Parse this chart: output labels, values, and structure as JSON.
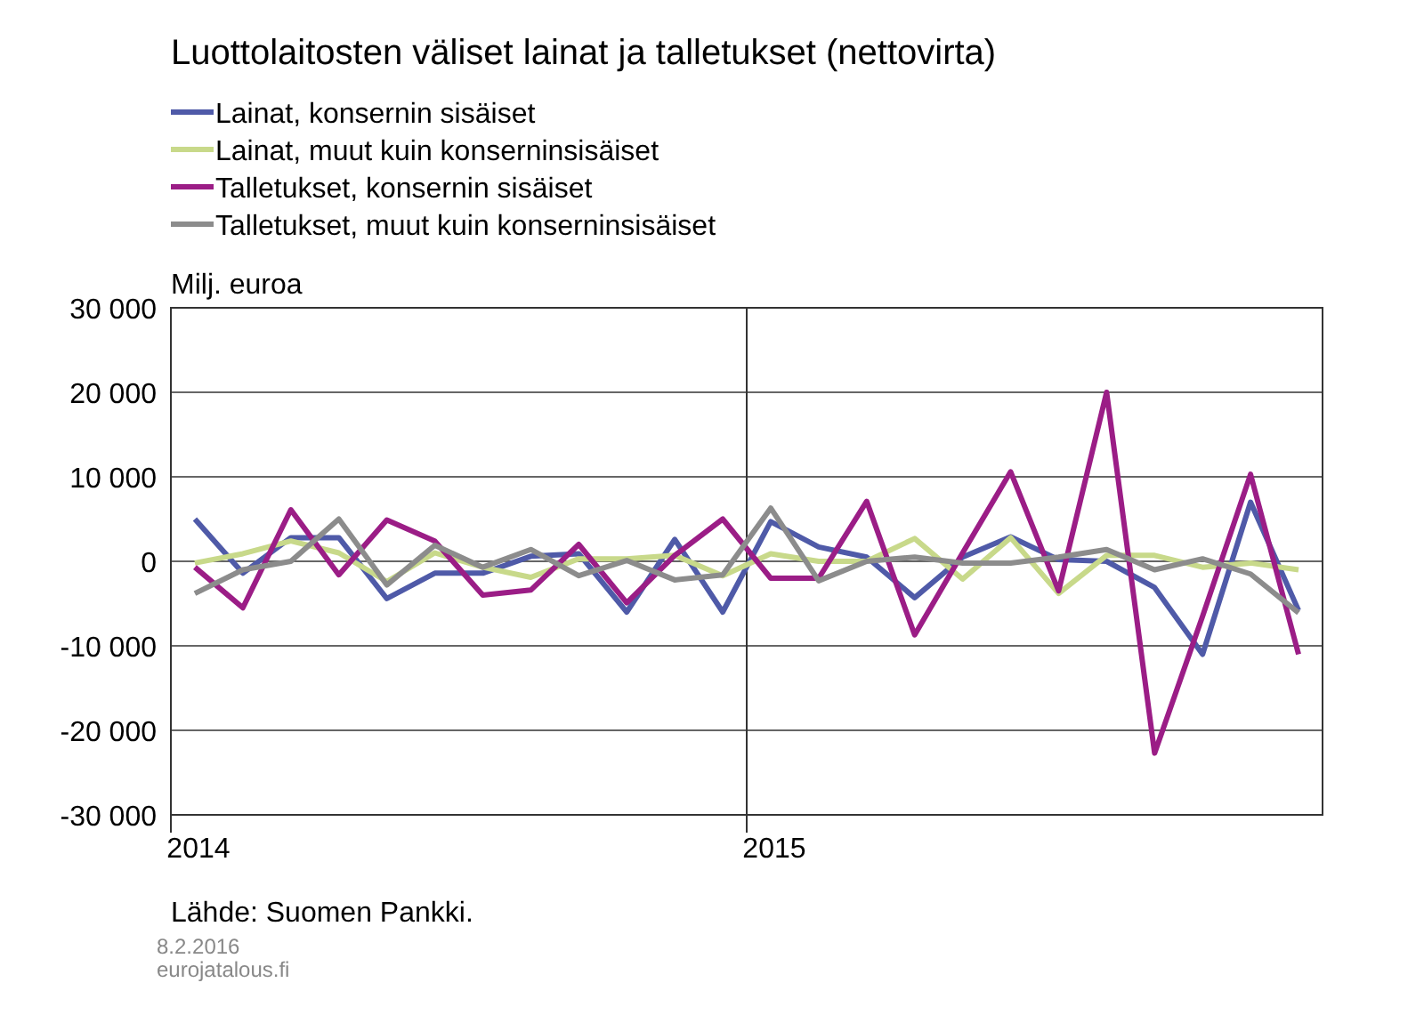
{
  "chart_data": {
    "type": "line",
    "title": "Luottolaitosten väliset lainat ja talletukset (nettovirta)",
    "ylabel": "Milj. euroa",
    "categories": [
      "2014",
      null,
      null,
      null,
      null,
      null,
      null,
      null,
      null,
      null,
      null,
      null,
      "2015",
      null,
      null,
      null,
      null,
      null,
      null,
      null,
      null,
      null,
      null,
      null
    ],
    "series": [
      {
        "name": "Lainat, konsernin sisäiset",
        "color": "#4f5aa8",
        "values": [
          5000,
          -1400,
          2800,
          2800,
          -4400,
          -1400,
          -1400,
          600,
          900,
          -6000,
          2600,
          -6000,
          4700,
          1700,
          500,
          -4300,
          500,
          2900,
          200,
          0,
          -3100,
          -11000,
          7000,
          -5800
        ]
      },
      {
        "name": "Lainat, muut kuin konserninsisäiset",
        "color": "#c8d98a",
        "values": [
          -200,
          900,
          2400,
          1000,
          -2400,
          1000,
          -700,
          -1900,
          300,
          300,
          700,
          -1700,
          900,
          0,
          0,
          2700,
          -2100,
          2800,
          -3800,
          700,
          700,
          -700,
          -200,
          -1000
        ]
      },
      {
        "name": "Talletukset, konsernin sisäiset",
        "color": "#9b1d86",
        "values": [
          -700,
          -5500,
          6100,
          -1600,
          4900,
          2400,
          -4000,
          -3400,
          2000,
          -4900,
          700,
          5000,
          -2000,
          -2000,
          7100,
          -8700,
          1000,
          10600,
          -3500,
          20000,
          -22700,
          -6500,
          10300,
          -11000
        ]
      },
      {
        "name": "Talletukset, muut kuin konserninsisäiset",
        "color": "#8c8c8c",
        "values": [
          -3800,
          -1000,
          0,
          5000,
          -2800,
          1900,
          -700,
          1400,
          -1700,
          100,
          -2200,
          -1600,
          6300,
          -2300,
          0,
          500,
          -200,
          -200,
          500,
          1400,
          -1000,
          300,
          -1500,
          -6100
        ]
      }
    ],
    "ylim": [
      -30000,
      30000
    ],
    "yticks": [
      {
        "value": -30000,
        "label": "-30 000"
      },
      {
        "value": -20000,
        "label": "-20 000"
      },
      {
        "value": -10000,
        "label": "-10 000"
      },
      0,
      {
        "value": 10000,
        "label": "10 000"
      },
      {
        "value": 20000,
        "label": "20 000"
      },
      {
        "value": 30000,
        "label": "30 000"
      }
    ],
    "grid": "y",
    "legend": "top left",
    "line_style": "solid",
    "annotations": [
      "Lähde: Suomen Pankki.",
      "8.2.2016",
      "eurojatalous.fi"
    ]
  }
}
